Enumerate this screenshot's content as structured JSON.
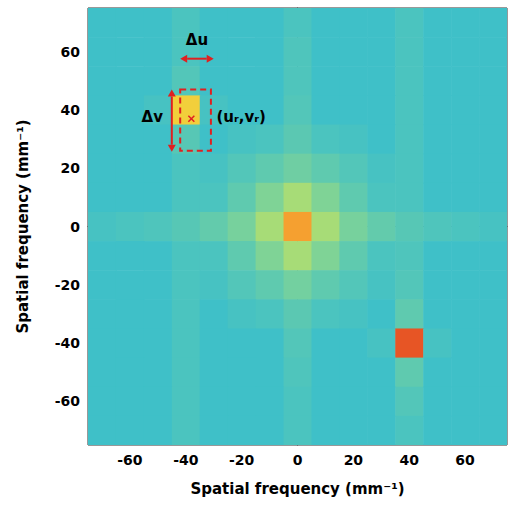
{
  "chart_data": {
    "type": "heatmap",
    "x_label": "Spatial frequency (mm⁻¹)",
    "y_label": "Spatial frequency (mm⁻¹)",
    "xlim": [
      -75,
      75
    ],
    "ylim": [
      -75,
      75
    ],
    "xticks": [
      -60,
      -40,
      -20,
      0,
      20,
      40,
      60
    ],
    "yticks": [
      -60,
      -40,
      -20,
      0,
      20,
      40,
      60
    ],
    "grid": false,
    "zlim": [
      0,
      10
    ],
    "x": [
      -70,
      -60,
      -50,
      -40,
      -30,
      -20,
      -10,
      0,
      10,
      20,
      30,
      40,
      50,
      60,
      70
    ],
    "y": [
      70,
      60,
      50,
      40,
      30,
      20,
      10,
      0,
      -10,
      -20,
      -30,
      -40,
      -50,
      -60,
      -70
    ],
    "cells": [
      [
        3,
        3,
        3,
        3.3,
        3,
        3,
        3,
        3.3,
        3,
        3,
        3,
        3.3,
        3,
        3,
        3
      ],
      [
        3,
        3,
        3,
        3.3,
        3,
        3,
        3,
        3.4,
        3,
        3,
        3,
        3.3,
        3,
        3,
        3
      ],
      [
        3,
        3,
        3,
        3.5,
        3,
        3,
        3,
        3.4,
        3,
        3,
        3,
        3.3,
        3,
        3,
        3
      ],
      [
        3,
        3,
        3.2,
        7.5,
        3.2,
        3,
        3,
        3.5,
        3,
        3,
        3,
        3.3,
        3,
        3,
        3
      ],
      [
        3,
        3,
        3,
        3.6,
        3,
        3.2,
        3.3,
        3.7,
        3.3,
        3.2,
        3,
        3.3,
        3,
        3,
        3
      ],
      [
        3,
        3,
        3,
        3.3,
        3.2,
        3.5,
        3.8,
        4.2,
        3.8,
        3.5,
        3.2,
        3.3,
        3,
        3,
        3
      ],
      [
        3,
        3,
        3,
        3.3,
        3.3,
        3.8,
        4.6,
        5.5,
        4.6,
        3.8,
        3.3,
        3.3,
        3,
        3,
        3
      ],
      [
        3.2,
        3.3,
        3.4,
        3.6,
        3.9,
        4.4,
        5.5,
        8.5,
        5.5,
        4.4,
        3.9,
        3.6,
        3.4,
        3.3,
        3.2
      ],
      [
        3,
        3,
        3,
        3.3,
        3.3,
        3.8,
        4.6,
        5.5,
        4.6,
        3.8,
        3.3,
        3.4,
        3,
        3,
        3
      ],
      [
        3,
        3,
        3,
        3.3,
        3.2,
        3.5,
        3.8,
        4.3,
        3.8,
        3.5,
        3.2,
        3.5,
        3,
        3,
        3
      ],
      [
        3,
        3,
        3,
        3.3,
        3,
        3.2,
        3.3,
        3.7,
        3.3,
        3.2,
        3,
        3.8,
        3,
        3,
        3
      ],
      [
        3,
        3,
        3,
        3.3,
        3,
        3,
        3,
        3.5,
        3,
        3,
        3.2,
        9.5,
        3.2,
        3,
        3
      ],
      [
        3,
        3,
        3,
        3.3,
        3,
        3,
        3,
        3.4,
        3,
        3,
        3,
        3.8,
        3,
        3,
        3
      ],
      [
        3,
        3,
        3,
        3.3,
        3,
        3,
        3,
        3.3,
        3,
        3,
        3,
        3.5,
        3,
        3,
        3
      ],
      [
        3,
        3,
        3,
        3.3,
        3,
        3,
        3,
        3.3,
        3,
        3,
        3,
        3.3,
        3,
        3,
        3
      ]
    ],
    "box": {
      "xlim": [
        -42,
        -31
      ],
      "ylim": [
        26,
        47
      ],
      "color": "#e02020",
      "line_style": "dashed"
    },
    "point": {
      "x": -38,
      "y": 37,
      "marker": "cross",
      "color": "#e02020"
    },
    "arrows": [
      {
        "from": [
          -42,
          57.6
        ],
        "to": [
          -30,
          57.6
        ],
        "color": "#e02020"
      },
      {
        "from": [
          -45,
          25.7
        ],
        "to": [
          -45,
          47
        ],
        "color": "#e02020"
      }
    ],
    "annotations": [
      {
        "text": "Δu",
        "x": -36,
        "y": 64
      },
      {
        "text": "Δv",
        "x": -52,
        "y": 37.5
      },
      {
        "text": "(uᵣ,vᵣ)",
        "x": -29,
        "y": 37.5
      }
    ]
  }
}
